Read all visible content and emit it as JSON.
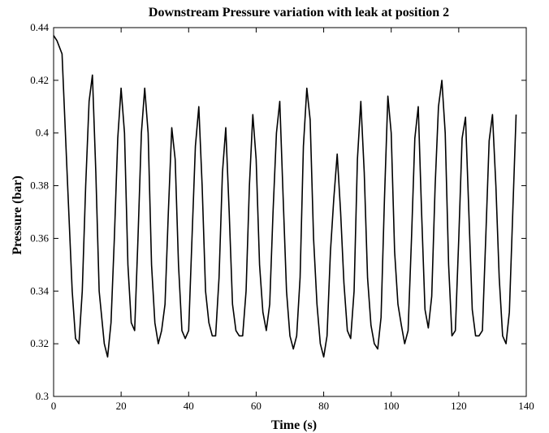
{
  "chart_data": {
    "type": "line",
    "title": "Downstream Pressure variation with leak at position 2",
    "xlabel": "Time (s)",
    "ylabel": "Pressure (bar)",
    "xlim": [
      0,
      140
    ],
    "ylim": [
      0.3,
      0.44
    ],
    "xticks": [
      "0",
      "20",
      "40",
      "60",
      "80",
      "100",
      "120",
      "140"
    ],
    "yticks": [
      "0.3",
      "0.32",
      "0.34",
      "0.36",
      "0.38",
      "0.4",
      "0.42",
      "0.44"
    ],
    "grid": false,
    "line_color": "#000000",
    "series": [
      {
        "x": [
          0,
          1,
          2.5,
          4,
          5.5,
          6.5,
          7.5,
          8.5,
          9.5,
          10.5,
          11.5,
          12.5,
          13.5,
          15,
          16,
          17,
          18,
          19,
          20,
          21,
          22,
          23,
          24,
          25,
          26,
          27,
          28,
          29,
          30,
          31,
          32,
          33,
          34,
          35,
          36,
          37,
          38,
          39,
          40,
          41,
          42,
          43,
          44,
          45,
          46,
          47,
          48,
          49,
          50,
          51,
          52,
          53,
          54,
          55,
          56,
          57,
          58,
          59,
          60,
          61,
          62,
          63,
          64,
          65,
          66,
          67,
          68,
          69,
          70,
          71,
          72,
          73,
          74,
          75,
          76,
          77,
          78,
          79,
          80,
          81,
          82,
          83,
          84,
          85,
          86,
          87,
          88,
          89,
          90,
          91,
          92,
          93,
          94,
          95,
          96,
          97,
          98,
          99,
          100,
          101,
          102,
          103,
          104,
          105,
          106,
          107,
          108,
          109,
          110,
          111,
          112,
          113,
          114,
          115,
          116,
          117,
          118,
          119,
          120,
          121,
          122,
          123,
          124,
          125,
          126,
          127,
          128,
          129,
          130,
          131,
          132,
          133,
          134,
          135,
          136,
          137
        ],
        "y": [
          0.437,
          0.435,
          0.43,
          0.385,
          0.34,
          0.322,
          0.32,
          0.34,
          0.38,
          0.412,
          0.422,
          0.385,
          0.34,
          0.32,
          0.315,
          0.328,
          0.36,
          0.398,
          0.417,
          0.4,
          0.35,
          0.328,
          0.325,
          0.36,
          0.4,
          0.417,
          0.4,
          0.35,
          0.328,
          0.32,
          0.325,
          0.335,
          0.37,
          0.402,
          0.39,
          0.35,
          0.325,
          0.322,
          0.325,
          0.36,
          0.395,
          0.41,
          0.38,
          0.34,
          0.328,
          0.323,
          0.323,
          0.345,
          0.385,
          0.402,
          0.37,
          0.335,
          0.325,
          0.323,
          0.323,
          0.34,
          0.38,
          0.407,
          0.39,
          0.35,
          0.332,
          0.325,
          0.335,
          0.37,
          0.4,
          0.412,
          0.375,
          0.34,
          0.323,
          0.318,
          0.323,
          0.345,
          0.395,
          0.417,
          0.405,
          0.36,
          0.335,
          0.32,
          0.315,
          0.323,
          0.355,
          0.375,
          0.392,
          0.37,
          0.343,
          0.325,
          0.322,
          0.34,
          0.39,
          0.412,
          0.385,
          0.345,
          0.327,
          0.32,
          0.318,
          0.33,
          0.375,
          0.414,
          0.4,
          0.355,
          0.335,
          0.327,
          0.32,
          0.325,
          0.36,
          0.398,
          0.41,
          0.37,
          0.333,
          0.326,
          0.338,
          0.38,
          0.41,
          0.42,
          0.4,
          0.35,
          0.323,
          0.325,
          0.36,
          0.398,
          0.406,
          0.37,
          0.333,
          0.323,
          0.323,
          0.325,
          0.36,
          0.397,
          0.407,
          0.38,
          0.345,
          0.323,
          0.32,
          0.332,
          0.37,
          0.407
        ]
      }
    ]
  }
}
